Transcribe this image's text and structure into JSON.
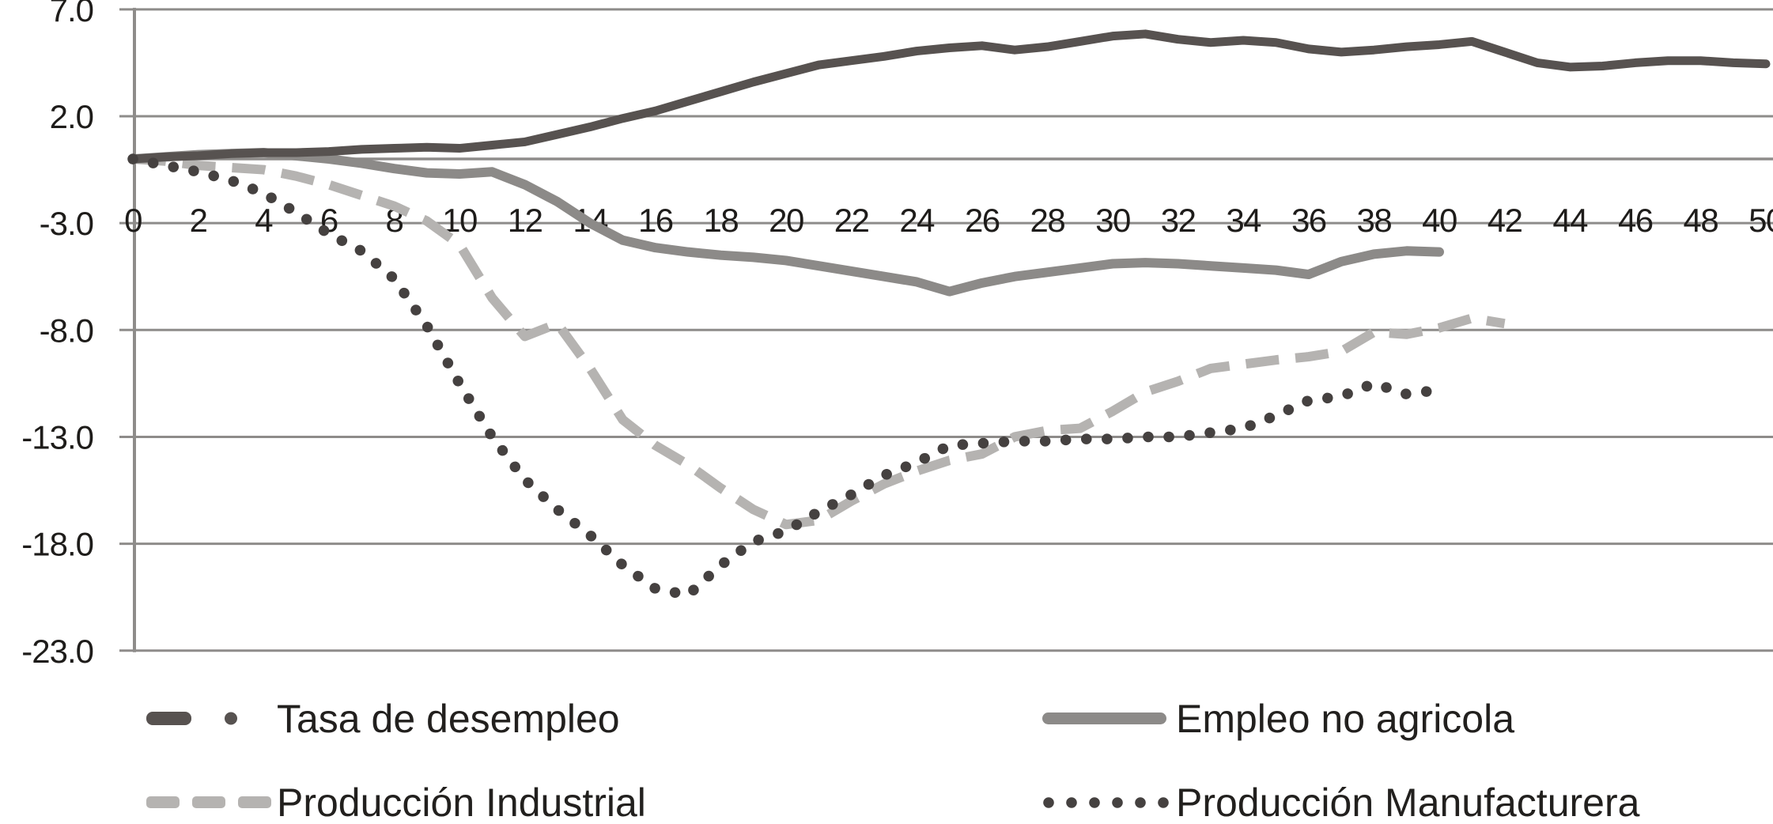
{
  "figure": {
    "background_color": "#ffffff",
    "axis_color": "#8e8c8a",
    "text_color": "#1e1c1a"
  },
  "chart_data": {
    "type": "line",
    "title": "",
    "xlabel": "",
    "ylabel": "",
    "x_start": 0,
    "x_step": 1,
    "xlim": [
      0,
      50
    ],
    "ylim": [
      -23,
      7
    ],
    "y_major_unit": 5,
    "grid": "horizontal",
    "zero_axis_line": true,
    "legend_position": "bottom",
    "y_ticks": [
      7,
      2,
      -3,
      -8,
      -13,
      -18,
      -23
    ],
    "y_tick_labels": [
      "7.0",
      "2.0",
      "-3.0",
      "-8.0",
      "-13.0",
      "-18.0",
      "-23.0"
    ],
    "x_ticks": [
      0,
      2,
      4,
      6,
      8,
      10,
      12,
      14,
      16,
      18,
      20,
      22,
      24,
      26,
      28,
      30,
      32,
      34,
      36,
      38,
      40,
      42,
      44,
      46,
      48,
      50
    ],
    "x_tick_labels": [
      "0",
      "2",
      "4",
      "6",
      "8",
      "10",
      "12",
      "14",
      "16",
      "18",
      "20",
      "22",
      "24",
      "26",
      "28",
      "30",
      "32",
      "34",
      "36",
      "38",
      "40",
      "42",
      "44",
      "46",
      "48",
      "50"
    ],
    "series": [
      {
        "name": "Tasa de desempleo",
        "color": "#575250",
        "line_style": "solid",
        "legend_marker": "dash-dot",
        "values": [
          0,
          0.1,
          0.15,
          0.25,
          0.3,
          0.3,
          0.35,
          0.45,
          0.5,
          0.55,
          0.5,
          0.65,
          0.8,
          1.15,
          1.5,
          1.9,
          2.25,
          2.7,
          3.15,
          3.6,
          4.0,
          4.4,
          4.6,
          4.8,
          5.05,
          5.2,
          5.3,
          5.1,
          5.25,
          5.5,
          5.75,
          5.85,
          5.6,
          5.45,
          5.55,
          5.45,
          5.15,
          5.0,
          5.1,
          5.25,
          5.35,
          5.5,
          5.0,
          4.5,
          4.3,
          4.35,
          4.5,
          4.6,
          4.6,
          4.5,
          4.45
        ]
      },
      {
        "name": "Empleo no agricola",
        "color": "#8c8a88",
        "line_style": "solid",
        "legend_marker": "solid-line",
        "values": [
          0,
          0.1,
          0.2,
          0.25,
          0.3,
          0.15,
          0,
          -0.2,
          -0.45,
          -0.65,
          -0.7,
          -0.6,
          -1.2,
          -2.0,
          -3.0,
          -3.8,
          -4.15,
          -4.35,
          -4.5,
          -4.6,
          -4.75,
          -5.0,
          -5.25,
          -5.5,
          -5.75,
          -6.2,
          -5.8,
          -5.5,
          -5.3,
          -5.1,
          -4.9,
          -4.85,
          -4.9,
          -5.0,
          -5.1,
          -5.2,
          -5.4,
          -4.8,
          -4.45,
          -4.3,
          -4.35
        ]
      },
      {
        "name": "Producción Industrial",
        "color": "#b5b3b1",
        "line_style": "dashed",
        "legend_marker": "dashes",
        "values": [
          0,
          -0.1,
          -0.3,
          -0.4,
          -0.5,
          -0.8,
          -1.2,
          -1.7,
          -2.2,
          -2.9,
          -4.0,
          -6.5,
          -8.3,
          -7.7,
          -9.8,
          -12.2,
          -13.4,
          -14.3,
          -15.4,
          -16.4,
          -17.1,
          -16.9,
          -16.0,
          -15.2,
          -14.6,
          -14.1,
          -13.8,
          -13.0,
          -12.7,
          -12.6,
          -11.8,
          -10.9,
          -10.4,
          -9.8,
          -9.6,
          -9.4,
          -9.25,
          -9.0,
          -8.1,
          -8.2,
          -7.9,
          -7.45,
          -7.7
        ]
      },
      {
        "name": "Producción Manufacturera",
        "color": "#454140",
        "line_style": "dotted",
        "legend_marker": "dots",
        "values": [
          0,
          -0.3,
          -0.6,
          -1.0,
          -1.6,
          -2.5,
          -3.5,
          -4.3,
          -5.6,
          -7.8,
          -10.5,
          -13.0,
          -15.0,
          -16.4,
          -17.6,
          -19.0,
          -20.1,
          -20.4,
          -19.0,
          -17.9,
          -17.4,
          -16.5,
          -15.7,
          -14.8,
          -14.2,
          -13.4,
          -13.3,
          -13.2,
          -13.2,
          -13.1,
          -13.1,
          -13.0,
          -13.0,
          -12.8,
          -12.6,
          -12.0,
          -11.3,
          -11.1,
          -10.5,
          -11.0,
          -10.8
        ]
      }
    ]
  }
}
